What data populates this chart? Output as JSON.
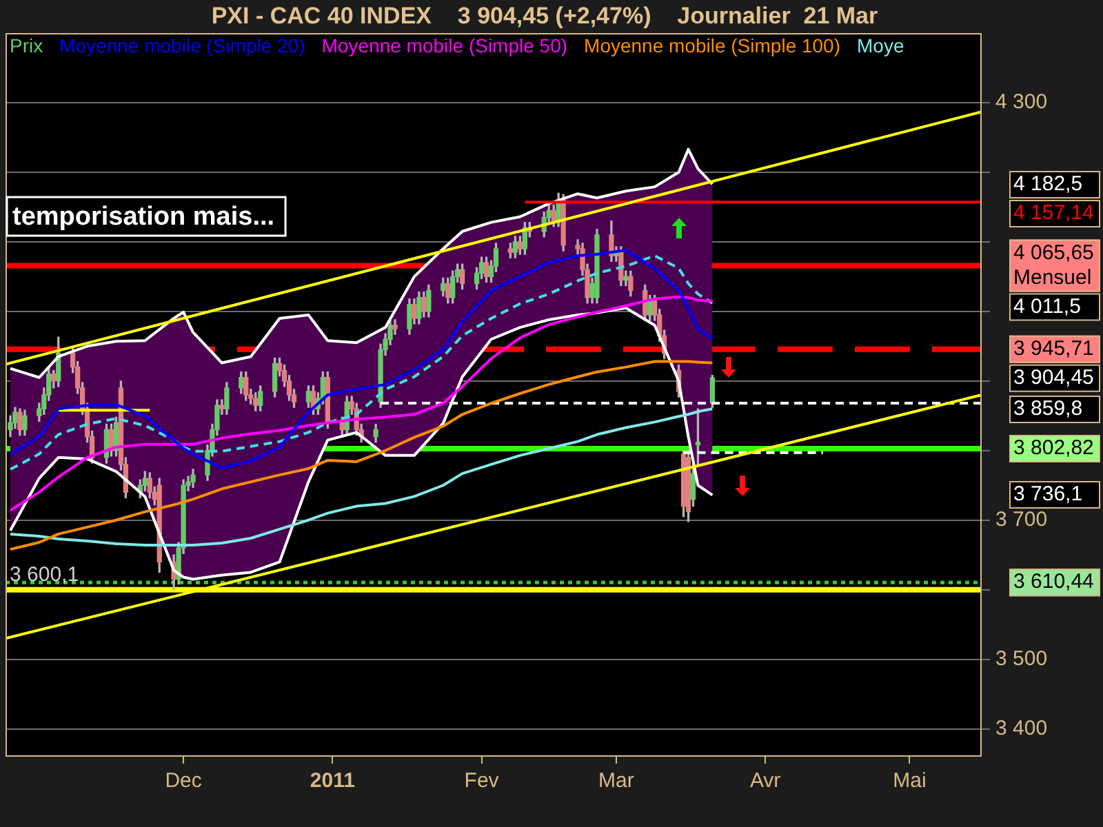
{
  "chart_data": {
    "type": "candlestick",
    "title": "PXI - CAC 40 INDEX    3 904,45 (+2,47%)    Journalier  21 Mar",
    "legend": "top",
    "grid": "y",
    "xlim": [
      "2010-10-25",
      "2011-05-16"
    ],
    "xticks": [
      {
        "value": "2010-12-01",
        "label": "Dec"
      },
      {
        "value": "2011-01-01",
        "label": "2011"
      },
      {
        "value": "2011-02-01",
        "label": "Fev"
      },
      {
        "value": "2011-03-01",
        "label": "Mar"
      },
      {
        "value": "2011-04-01",
        "label": "Avr"
      },
      {
        "value": "2011-05-01",
        "label": "Mai"
      }
    ],
    "ylim": [
      3360,
      4400
    ],
    "yticks": [
      {
        "value": 3400,
        "label": "3 400"
      },
      {
        "value": 3500,
        "label": "3 500"
      },
      {
        "value": 3600,
        "label": null
      },
      {
        "value": 3700,
        "label": "3 700"
      },
      {
        "value": 3800,
        "label": null
      },
      {
        "value": 3900,
        "label": null
      },
      {
        "value": 4000,
        "label": null
      },
      {
        "value": 4100,
        "label": null
      },
      {
        "value": 4200,
        "label": null
      },
      {
        "value": 4300,
        "label": "4 300"
      }
    ],
    "series": [
      {
        "name": "Prix",
        "color": "#b4b4b4",
        "x": [
          "2010-10-26",
          "2010-10-27",
          "2010-10-28",
          "2010-10-29",
          "2010-11-01",
          "2010-11-02",
          "2010-11-03",
          "2010-11-04",
          "2010-11-05",
          "2010-11-08",
          "2010-11-09",
          "2010-11-10",
          "2010-11-11",
          "2010-11-12",
          "2010-11-15",
          "2010-11-16",
          "2010-11-17",
          "2010-11-18",
          "2010-11-19",
          "2010-11-22",
          "2010-11-23",
          "2010-11-24",
          "2010-11-25",
          "2010-11-26",
          "2010-11-29",
          "2010-11-30",
          "2010-12-01",
          "2010-12-02",
          "2010-12-03",
          "2010-12-06",
          "2010-12-07",
          "2010-12-08",
          "2010-12-09",
          "2010-12-10",
          "2010-12-13",
          "2010-12-14",
          "2010-12-15",
          "2010-12-16",
          "2010-12-17",
          "2010-12-20",
          "2010-12-21",
          "2010-12-22",
          "2010-12-23",
          "2010-12-24",
          "2010-12-27",
          "2010-12-28",
          "2010-12-29",
          "2010-12-30",
          "2010-12-31",
          "2011-01-03",
          "2011-01-04",
          "2011-01-05",
          "2011-01-06",
          "2011-01-07",
          "2011-01-10",
          "2011-01-11",
          "2011-01-12",
          "2011-01-13",
          "2011-01-14",
          "2011-01-17",
          "2011-01-18",
          "2011-01-19",
          "2011-01-20",
          "2011-01-21",
          "2011-01-24",
          "2011-01-25",
          "2011-01-26",
          "2011-01-27",
          "2011-01-28",
          "2011-01-31",
          "2011-02-01",
          "2011-02-02",
          "2011-02-03",
          "2011-02-04",
          "2011-02-07",
          "2011-02-08",
          "2011-02-09",
          "2011-02-10",
          "2011-02-11",
          "2011-02-14",
          "2011-02-15",
          "2011-02-16",
          "2011-02-17",
          "2011-02-18",
          "2011-02-21",
          "2011-02-22",
          "2011-02-23",
          "2011-02-24",
          "2011-02-25",
          "2011-02-28",
          "2011-03-01",
          "2011-03-02",
          "2011-03-03",
          "2011-03-04",
          "2011-03-07",
          "2011-03-08",
          "2011-03-09",
          "2011-03-10",
          "2011-03-11",
          "2011-03-14",
          "2011-03-15",
          "2011-03-16",
          "2011-03-17",
          "2011-03-18",
          "2011-03-21"
        ],
        "ohlc": [
          [
            3830,
            3850,
            3820,
            3840
          ],
          [
            3840,
            3862,
            3832,
            3855
          ],
          [
            3855,
            3860,
            3822,
            3830
          ],
          [
            3830,
            3858,
            3822,
            3850
          ],
          [
            3850,
            3868,
            3842,
            3860
          ],
          [
            3860,
            3890,
            3852,
            3880
          ],
          [
            3880,
            3918,
            3872,
            3910
          ],
          [
            3910,
            3915,
            3890,
            3900
          ],
          [
            3900,
            3963,
            3892,
            3940
          ],
          [
            3940,
            3948,
            3912,
            3920
          ],
          [
            3920,
            3928,
            3882,
            3890
          ],
          [
            3890,
            3898,
            3852,
            3860
          ],
          [
            3860,
            3868,
            3812,
            3820
          ],
          [
            3820,
            3828,
            3782,
            3790
          ],
          [
            3790,
            3838,
            3782,
            3830
          ],
          [
            3830,
            3838,
            3792,
            3800
          ],
          [
            3800,
            3848,
            3792,
            3840
          ],
          [
            3890,
            3900,
            3772,
            3780
          ],
          [
            3780,
            3790,
            3732,
            3740
          ],
          [
            3740,
            3758,
            3732,
            3750
          ],
          [
            3750,
            3770,
            3742,
            3760
          ],
          [
            3760,
            3768,
            3732,
            3740
          ],
          [
            3740,
            3748,
            3722,
            3730
          ],
          [
            3750,
            3760,
            3625,
            3640
          ],
          [
            3640,
            3650,
            3600.1,
            3615
          ],
          [
            3615,
            3668,
            3608,
            3660
          ],
          [
            3660,
            3758,
            3652,
            3750
          ],
          [
            3750,
            3763,
            3742,
            3755
          ],
          [
            3755,
            3773,
            3747,
            3765
          ],
          [
            3765,
            3808,
            3757,
            3800
          ],
          [
            3800,
            3838,
            3792,
            3830
          ],
          [
            3830,
            3873,
            3822,
            3865
          ],
          [
            3865,
            3873,
            3852,
            3860
          ],
          [
            3860,
            3898,
            3852,
            3890
          ],
          [
            3890,
            3913,
            3882,
            3905
          ],
          [
            3905,
            3913,
            3872,
            3880
          ],
          [
            3880,
            3888,
            3867,
            3875
          ],
          [
            3875,
            3883,
            3857,
            3865
          ],
          [
            3865,
            3893,
            3857,
            3885
          ],
          [
            3885,
            3933,
            3877,
            3925
          ],
          [
            3925,
            3933,
            3907,
            3915
          ],
          [
            3915,
            3923,
            3892,
            3900
          ],
          [
            3900,
            3908,
            3872,
            3880
          ],
          [
            3880,
            3888,
            3862,
            3870
          ],
          [
            3870,
            3893,
            3862,
            3885
          ],
          [
            3885,
            3893,
            3852,
            3860
          ],
          [
            3860,
            3883,
            3852,
            3875
          ],
          [
            3875,
            3913,
            3867,
            3905
          ],
          [
            3905,
            3913,
            3832,
            3840
          ],
          [
            3840,
            3848,
            3822,
            3830
          ],
          [
            3830,
            3878,
            3822,
            3870
          ],
          [
            3870,
            3878,
            3852,
            3860
          ],
          [
            3860,
            3868,
            3822,
            3830
          ],
          [
            3830,
            3838,
            3812,
            3820
          ],
          [
            3820,
            3838,
            3812,
            3830
          ],
          [
            3870,
            3953,
            3862,
            3945
          ],
          [
            3945,
            3968,
            3937,
            3960
          ],
          [
            3960,
            3988,
            3952,
            3980
          ],
          [
            3980,
            3988,
            3967,
            3975
          ],
          [
            3975,
            4018,
            3967,
            4010
          ],
          [
            4010,
            4018,
            3982,
            3990
          ],
          [
            3990,
            4028,
            3982,
            4020
          ],
          [
            4020,
            4028,
            3992,
            4000
          ],
          [
            4000,
            4038,
            3992,
            4030
          ],
          [
            4030,
            4048,
            4022,
            4040
          ],
          [
            4040,
            4048,
            4012,
            4020
          ],
          [
            4020,
            4058,
            4012,
            4050
          ],
          [
            4050,
            4068,
            4042,
            4060
          ],
          [
            4060,
            4068,
            4032,
            4040
          ],
          [
            4040,
            4063,
            4032,
            4055
          ],
          [
            4055,
            4078,
            4047,
            4070
          ],
          [
            4070,
            4078,
            4042,
            4050
          ],
          [
            4050,
            4073,
            4042,
            4065
          ],
          [
            4065,
            4098,
            4057,
            4090
          ],
          [
            4090,
            4098,
            4077,
            4085
          ],
          [
            4085,
            4108,
            4077,
            4100
          ],
          [
            4100,
            4108,
            4082,
            4090
          ],
          [
            4090,
            4128,
            4082,
            4120
          ],
          [
            4120,
            4128,
            4107,
            4115
          ],
          [
            4115,
            4143,
            4107,
            4135
          ],
          [
            4135,
            4153,
            4127,
            4145
          ],
          [
            4145,
            4153,
            4122,
            4130
          ],
          [
            4130,
            4170,
            4122,
            4155
          ],
          [
            4160,
            4168,
            4087,
            4095
          ],
          [
            4095,
            4103,
            4082,
            4090
          ],
          [
            4090,
            4098,
            4052,
            4060
          ],
          [
            4060,
            4068,
            4012,
            4020
          ],
          [
            4020,
            4048,
            4012,
            4040
          ],
          [
            4020,
            4118,
            4012,
            4110
          ],
          [
            4110,
            4130,
            4072,
            4080
          ],
          [
            4080,
            4093,
            4072,
            4085
          ],
          [
            4085,
            4093,
            4037,
            4045
          ],
          [
            4045,
            4058,
            4037,
            4050
          ],
          [
            4050,
            4058,
            4022,
            4030
          ],
          [
            4030,
            4038,
            3987,
            3995
          ],
          [
            3995,
            4023,
            3987,
            4015
          ],
          [
            4015,
            4023,
            3987,
            3995
          ],
          [
            3995,
            4003,
            3957,
            3965
          ],
          [
            3965,
            3973,
            3932,
            3940
          ],
          [
            3915,
            3923,
            3877,
            3885
          ],
          [
            3795,
            3800,
            3705,
            3720
          ],
          [
            3790,
            3800,
            3698,
            3712
          ],
          [
            3730,
            3780,
            3720,
            3767
          ],
          [
            3808,
            3860,
            3780,
            3812
          ],
          [
            3868,
            3908,
            3862,
            3904.45
          ]
        ],
        "colors": [
          "#66cc66",
          "#66cc66",
          "#e08080",
          "#66cc66",
          "#66cc66",
          "#66cc66",
          "#66cc66",
          "#e08080",
          "#66cc66",
          "#e08080",
          "#e08080",
          "#e08080",
          "#e08080",
          "#e08080",
          "#66cc66",
          "#e08080",
          "#66cc66",
          "#e08080",
          "#e08080",
          "#66cc66",
          "#66cc66",
          "#e08080",
          "#e08080",
          "#e08080",
          "#e08080",
          "#66cc66",
          "#66cc66",
          "#66cc66",
          "#66cc66",
          "#66cc66",
          "#66cc66",
          "#66cc66",
          "#e08080",
          "#66cc66",
          "#66cc66",
          "#e08080",
          "#e08080",
          "#e08080",
          "#66cc66",
          "#66cc66",
          "#e08080",
          "#e08080",
          "#e08080",
          "#e08080",
          "#66cc66",
          "#e08080",
          "#66cc66",
          "#66cc66",
          "#e08080",
          "#e08080",
          "#66cc66",
          "#e08080",
          "#e08080",
          "#e08080",
          "#66cc66",
          "#66cc66",
          "#66cc66",
          "#66cc66",
          "#e08080",
          "#66cc66",
          "#e08080",
          "#66cc66",
          "#e08080",
          "#66cc66",
          "#66cc66",
          "#e08080",
          "#66cc66",
          "#66cc66",
          "#e08080",
          "#66cc66",
          "#66cc66",
          "#e08080",
          "#66cc66",
          "#66cc66",
          "#e08080",
          "#66cc66",
          "#e08080",
          "#66cc66",
          "#e08080",
          "#66cc66",
          "#66cc66",
          "#e08080",
          "#66cc66",
          "#e08080",
          "#e08080",
          "#e08080",
          "#e08080",
          "#66cc66",
          "#66cc66",
          "#e08080",
          "#66cc66",
          "#e08080",
          "#66cc66",
          "#e08080",
          "#e08080",
          "#66cc66",
          "#e08080",
          "#e08080",
          "#e08080",
          "#e08080",
          "#e08080",
          "#e08080",
          "#66cc66",
          "#66cc66",
          "#66cc66"
        ]
      },
      {
        "name": "Moyenne mobile (Simple 20)",
        "type": "line",
        "color": "#0000ff",
        "x": [
          "2010-10-26",
          "2010-11-01",
          "2010-11-05",
          "2010-11-11",
          "2010-11-17",
          "2010-11-23",
          "2010-11-29",
          "2010-12-01",
          "2010-12-03",
          "2010-12-09",
          "2010-12-15",
          "2010-12-21",
          "2010-12-27",
          "2010-12-31",
          "2011-01-06",
          "2011-01-12",
          "2011-01-18",
          "2011-01-24",
          "2011-01-28",
          "2011-02-03",
          "2011-02-09",
          "2011-02-15",
          "2011-02-21",
          "2011-02-25",
          "2011-03-03",
          "2011-03-09",
          "2011-03-14",
          "2011-03-16",
          "2011-03-18",
          "2011-03-21"
        ],
        "values": [
          3795,
          3820,
          3860,
          3865,
          3866,
          3850,
          3815,
          3803,
          3795,
          3775,
          3785,
          3805,
          3855,
          3880,
          3888,
          3895,
          3916,
          3945,
          3985,
          4030,
          4050,
          4070,
          4080,
          4082,
          4088,
          4062,
          4030,
          4005,
          3975,
          3961
        ],
        "upper": [
          3918,
          3905,
          3935,
          3950,
          3957,
          3958,
          3990,
          3999,
          3970,
          3926,
          3935,
          3990,
          3995,
          3958,
          3955,
          3977,
          4050,
          4090,
          4115,
          4128,
          4136,
          4155,
          4169,
          4163,
          4173,
          4179,
          4200,
          4233,
          4205,
          4182.5
        ],
        "lower": [
          3685,
          3760,
          3790,
          3788,
          3770,
          3734,
          3628,
          3618,
          3615,
          3621,
          3625,
          3640,
          3755,
          3815,
          3826,
          3793,
          3793,
          3839,
          3906,
          3960,
          3977,
          3988,
          3995,
          3998,
          4005,
          3980,
          3900,
          3820,
          3750,
          3736.1
        ]
      },
      {
        "name": "Moyenne mobile (Simple 50)",
        "type": "line",
        "color": "#ff00ff",
        "x": [
          "2010-10-26",
          "2010-11-01",
          "2010-11-05",
          "2010-11-11",
          "2010-11-17",
          "2010-11-23",
          "2010-11-29",
          "2010-12-01",
          "2010-12-03",
          "2010-12-09",
          "2010-12-15",
          "2010-12-21",
          "2010-12-27",
          "2010-12-31",
          "2011-01-06",
          "2011-01-12",
          "2011-01-18",
          "2011-01-24",
          "2011-01-28",
          "2011-02-03",
          "2011-02-09",
          "2011-02-15",
          "2011-02-21",
          "2011-02-25",
          "2011-03-03",
          "2011-03-09",
          "2011-03-14",
          "2011-03-16",
          "2011-03-18",
          "2011-03-21"
        ],
        "values": [
          3714,
          3740,
          3762,
          3790,
          3805,
          3809,
          3809,
          3809,
          3809,
          3818,
          3824,
          3829,
          3836,
          3840,
          3845,
          3848,
          3852,
          3868,
          3892,
          3932,
          3962,
          3981,
          3992,
          3999,
          4008,
          4018,
          4021,
          4020,
          4016,
          4015
        ]
      },
      {
        "name": "Moyenne mobile (Simple 100)",
        "type": "line",
        "color": "#ff8c00",
        "x": [
          "2010-10-26",
          "2010-11-01",
          "2010-11-05",
          "2010-11-11",
          "2010-11-17",
          "2010-11-23",
          "2010-11-29",
          "2010-12-01",
          "2010-12-03",
          "2010-12-09",
          "2010-12-15",
          "2010-12-21",
          "2010-12-27",
          "2010-12-31",
          "2011-01-06",
          "2011-01-12",
          "2011-01-18",
          "2011-01-24",
          "2011-01-28",
          "2011-02-03",
          "2011-02-09",
          "2011-02-15",
          "2011-02-21",
          "2011-02-25",
          "2011-03-03",
          "2011-03-09",
          "2011-03-14",
          "2011-03-16",
          "2011-03-18",
          "2011-03-21"
        ],
        "values": [
          3658,
          3668,
          3680,
          3690,
          3700,
          3712,
          3722,
          3726,
          3730,
          3745,
          3755,
          3765,
          3774,
          3786,
          3784,
          3800,
          3819,
          3835,
          3852,
          3868,
          3882,
          3895,
          3906,
          3913,
          3920,
          3928,
          3928,
          3928,
          3927,
          3926
        ]
      },
      {
        "name": "Moye",
        "type": "line",
        "color": "#80e8e8",
        "x": [
          "2010-10-26",
          "2010-11-01",
          "2010-11-05",
          "2010-11-11",
          "2010-11-17",
          "2010-11-23",
          "2010-11-29",
          "2010-12-01",
          "2010-12-03",
          "2010-12-09",
          "2010-12-15",
          "2010-12-21",
          "2010-12-27",
          "2010-12-31",
          "2011-01-06",
          "2011-01-12",
          "2011-01-18",
          "2011-01-24",
          "2011-01-28",
          "2011-02-03",
          "2011-02-09",
          "2011-02-15",
          "2011-02-21",
          "2011-02-25",
          "2011-03-03",
          "2011-03-09",
          "2011-03-14",
          "2011-03-16",
          "2011-03-18",
          "2011-03-21"
        ],
        "values": [
          3680,
          3677,
          3673,
          3670,
          3666,
          3664,
          3664,
          3664,
          3664,
          3667,
          3674,
          3687,
          3700,
          3710,
          3720,
          3724,
          3734,
          3750,
          3767,
          3780,
          3793,
          3803,
          3813,
          3823,
          3833,
          3841,
          3849,
          3852,
          3856,
          3860
        ]
      },
      {
        "type": "line",
        "color": "#40e0e0",
        "line_style": "dashed",
        "x": [
          "2010-10-26",
          "2010-11-01",
          "2010-11-05",
          "2010-11-11",
          "2010-11-17",
          "2010-11-23",
          "2010-11-29",
          "2010-12-01",
          "2010-12-03",
          "2010-12-09",
          "2010-12-15",
          "2010-12-21",
          "2010-12-27",
          "2010-12-31",
          "2011-01-06",
          "2011-01-12",
          "2011-01-18",
          "2011-01-24",
          "2011-01-28",
          "2011-02-03",
          "2011-02-09",
          "2011-02-15",
          "2011-02-21",
          "2011-02-25",
          "2011-03-03",
          "2011-03-09",
          "2011-03-14",
          "2011-03-16",
          "2011-03-18",
          "2011-03-21"
        ],
        "values": [
          3773,
          3795,
          3823,
          3838,
          3846,
          3836,
          3815,
          3805,
          3799,
          3799,
          3806,
          3813,
          3826,
          3840,
          3852,
          3888,
          3906,
          3935,
          3965,
          3990,
          4011,
          4025,
          4044,
          4055,
          4065,
          4080,
          4062,
          4040,
          4025,
          4012
        ]
      },
      {
        "type": "line",
        "color": "#ffff00",
        "x": [
          "2010-10-25",
          "2011-05-16"
        ],
        "values": [
          3924,
          4287
        ]
      },
      {
        "type": "line",
        "color": "#ffff00",
        "x": [
          "2010-10-25",
          "2011-05-16"
        ],
        "values": [
          3530,
          3880
        ]
      },
      {
        "type": "line",
        "color": "#ffff00",
        "x": [
          "2010-11-05",
          "2010-11-24"
        ],
        "values": [
          3858,
          3858
        ]
      },
      {
        "type": "line",
        "color": "#ff0000",
        "x": [
          "2011-02-10",
          "2011-05-16"
        ],
        "values": [
          4157.14,
          4157.14
        ],
        "value_labels": [
          null,
          "4 157,14"
        ]
      },
      {
        "type": "line",
        "color": "#ffffff",
        "line_style": "dashed",
        "x": [
          "2011-01-11",
          "2011-05-16"
        ],
        "values": [
          3868,
          3868
        ]
      },
      {
        "type": "line",
        "color": "#ffffff",
        "line_style": "dashed",
        "x": [
          "2011-03-15",
          "2011-04-13"
        ],
        "values": [
          3797,
          3797
        ]
      },
      {
        "type": "line",
        "color": "#ffffff",
        "x": [
          "2010-10-26",
          "2010-11-01",
          "2010-11-05",
          "2010-11-11",
          "2010-11-17",
          "2010-11-23",
          "2010-11-29",
          "2010-12-01",
          "2010-12-03",
          "2010-12-09",
          "2010-12-15",
          "2010-12-21",
          "2010-12-27",
          "2010-12-31",
          "2011-01-06",
          "2011-01-12",
          "2011-01-18",
          "2011-01-24",
          "2011-01-28",
          "2011-02-03",
          "2011-02-09",
          "2011-02-15",
          "2011-02-21",
          "2011-02-25",
          "2011-03-03",
          "2011-03-09",
          "2011-03-14",
          "2011-03-16",
          "2011-03-18",
          "2011-03-21"
        ],
        "values": [
          3918,
          3905,
          3935,
          3950,
          3957,
          3958,
          3990,
          3999,
          3970,
          3926,
          3935,
          3990,
          3995,
          3958,
          3955,
          3977,
          4050,
          4090,
          4115,
          4128,
          4136,
          4155,
          4169,
          4163,
          4173,
          4179,
          4200,
          4233,
          4205,
          4183
        ]
      },
      {
        "type": "line",
        "color": "#ffffff",
        "x": [
          "2010-10-26",
          "2010-11-01",
          "2010-11-05",
          "2010-11-11",
          "2010-11-17",
          "2010-11-23",
          "2010-11-29",
          "2010-12-01",
          "2010-12-03",
          "2010-12-09",
          "2010-12-15",
          "2010-12-21",
          "2010-12-27",
          "2010-12-31",
          "2011-01-06",
          "2011-01-12",
          "2011-01-18",
          "2011-01-24",
          "2011-01-28",
          "2011-02-03",
          "2011-02-09",
          "2011-02-15",
          "2011-02-21",
          "2011-02-25",
          "2011-03-03",
          "2011-03-09",
          "2011-03-14",
          "2011-03-16",
          "2011-03-18",
          "2011-03-21"
        ],
        "values": [
          3685,
          3760,
          3790,
          3788,
          3770,
          3734,
          3628,
          3618,
          3615,
          3621,
          3625,
          3640,
          3755,
          3815,
          3826,
          3793,
          3793,
          3839,
          3906,
          3960,
          3977,
          3988,
          3995,
          3998,
          4005,
          3980,
          3900,
          3820,
          3750,
          3736
        ]
      }
    ],
    "ref_lines": [
      {
        "axis": "y",
        "value": 4065.65,
        "color": "#ff0000",
        "line_style": "solid",
        "label": "4 065,65\nMensuel"
      },
      {
        "axis": "y",
        "value": 3945.71,
        "color": "#ff0000",
        "line_style": "dashed",
        "label": "3 945,71"
      },
      {
        "axis": "y",
        "value": 3802.82,
        "color": "#33ff00",
        "line_style": "solid",
        "label": "3 802,82"
      },
      {
        "axis": "y",
        "value": 3610.44,
        "color": "#33cc33",
        "line_style": "dotted",
        "label": "3 610,44"
      },
      {
        "axis": "y",
        "value": 3600,
        "color": "#ffff00",
        "line_style": "solid"
      }
    ],
    "annotations": [
      "temporisation mais...",
      "4 182,5",
      "3 736,1",
      "3 600,1",
      "4 011,5",
      "3 904,45",
      "3 859,8"
    ]
  }
}
